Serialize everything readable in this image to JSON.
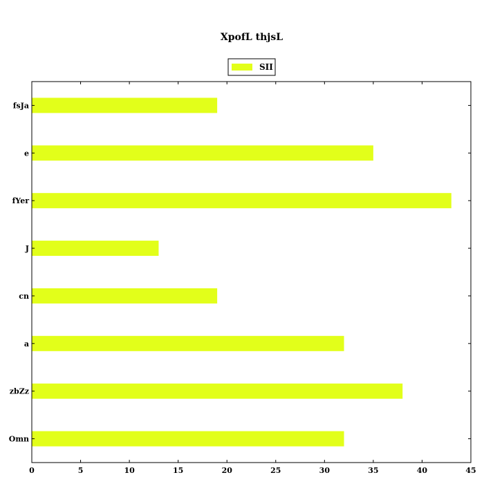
{
  "chart_data": {
    "type": "bar",
    "orientation": "horizontal",
    "title": "XpofL thjsL",
    "categories": [
      "Omn",
      "zbZz",
      "a",
      "cn",
      "J",
      "fYer",
      "e",
      "fsJa"
    ],
    "series": [
      {
        "name": "SII",
        "values": [
          32,
          38,
          32,
          19,
          13,
          43,
          35,
          19
        ]
      }
    ],
    "xlim": [
      0,
      45
    ],
    "xticks": [
      0,
      5,
      10,
      15,
      20,
      25,
      30,
      35,
      40,
      45
    ],
    "grid": false,
    "legend_position": "top-center",
    "bar_color": "#e2ff1a"
  }
}
